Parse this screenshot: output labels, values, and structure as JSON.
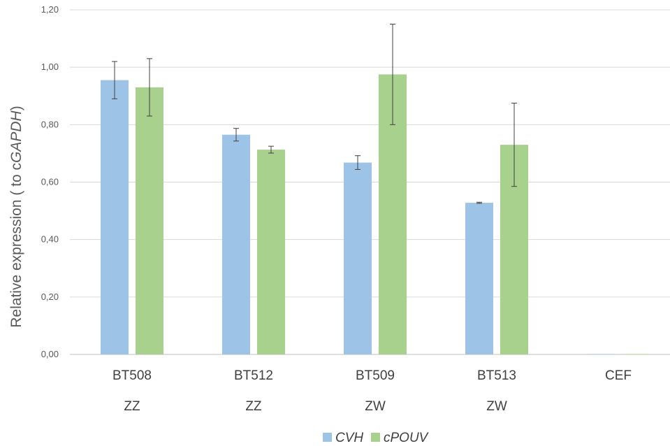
{
  "chart_data": {
    "type": "bar",
    "title": "",
    "categories": [
      "BT508",
      "BT512",
      "BT509",
      "BT513",
      "CEF"
    ],
    "category_sublabels": [
      "ZZ",
      "ZZ",
      "ZW",
      "ZW",
      ""
    ],
    "ylabel_prefix": "Relative expression ( to c",
    "ylabel_gene": "GAPDH",
    "ylabel_suffix": ")",
    "ylim": [
      0,
      1.2
    ],
    "yticks": [
      "0,00",
      "0,20",
      "0,40",
      "0,60",
      "0,80",
      "1,00",
      "1,20"
    ],
    "grid": true,
    "legend_position": "bottom",
    "series": [
      {
        "name": "CVH",
        "color": "#9dc3e6",
        "values": [
          0.955,
          0.765,
          0.668,
          0.528,
          0.0
        ],
        "errors": [
          0.065,
          0.022,
          0.024,
          0.002,
          0.0
        ]
      },
      {
        "name": "cPOUV",
        "color": "#a9d18e",
        "values": [
          0.93,
          0.713,
          0.975,
          0.73,
          0.0
        ],
        "errors": [
          0.1,
          0.012,
          0.175,
          0.145,
          0.0
        ]
      }
    ]
  }
}
